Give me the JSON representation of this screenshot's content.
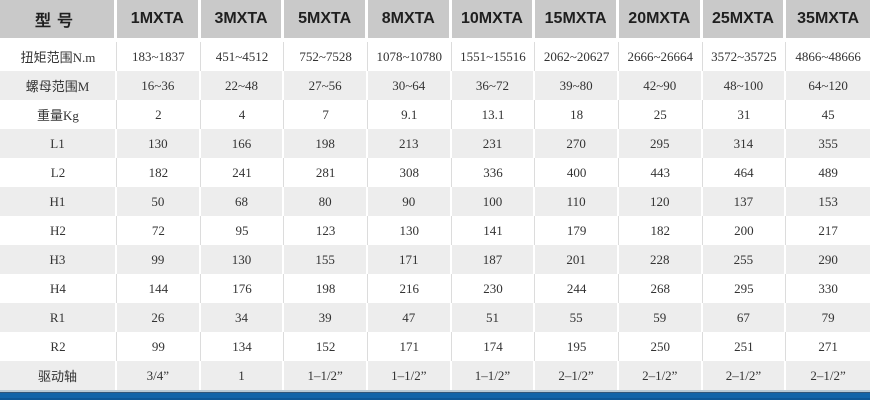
{
  "chart_data": {
    "type": "table",
    "title": "MXTA series specification table",
    "columns": [
      "型号",
      "1MXTA",
      "3MXTA",
      "5MXTA",
      "8MXTA",
      "10MXTA",
      "15MXTA",
      "20MXTA",
      "25MXTA",
      "35MXTA"
    ],
    "rows": [
      {
        "label": "扭矩范围N.m",
        "values": [
          "183~1837",
          "451~4512",
          "752~7528",
          "1078~10780",
          "1551~15516",
          "2062~20627",
          "2666~26664",
          "3572~35725",
          "4866~48666"
        ]
      },
      {
        "label": "螺母范围M",
        "values": [
          "16~36",
          "22~48",
          "27~56",
          "30~64",
          "36~72",
          "39~80",
          "42~90",
          "48~100",
          "64~120"
        ]
      },
      {
        "label": "重量Kg",
        "values": [
          "2",
          "4",
          "7",
          "9.1",
          "13.1",
          "18",
          "25",
          "31",
          "45"
        ]
      },
      {
        "label": "L1",
        "values": [
          "130",
          "166",
          "198",
          "213",
          "231",
          "270",
          "295",
          "314",
          "355"
        ]
      },
      {
        "label": "L2",
        "values": [
          "182",
          "241",
          "281",
          "308",
          "336",
          "400",
          "443",
          "464",
          "489"
        ]
      },
      {
        "label": "H1",
        "values": [
          "50",
          "68",
          "80",
          "90",
          "100",
          "110",
          "120",
          "137",
          "153"
        ]
      },
      {
        "label": "H2",
        "values": [
          "72",
          "95",
          "123",
          "130",
          "141",
          "179",
          "182",
          "200",
          "217"
        ]
      },
      {
        "label": "H3",
        "values": [
          "99",
          "130",
          "155",
          "171",
          "187",
          "201",
          "228",
          "255",
          "290"
        ]
      },
      {
        "label": "H4",
        "values": [
          "144",
          "176",
          "198",
          "216",
          "230",
          "244",
          "268",
          "295",
          "330"
        ]
      },
      {
        "label": "R1",
        "values": [
          "26",
          "34",
          "39",
          "47",
          "51",
          "55",
          "59",
          "67",
          "79"
        ]
      },
      {
        "label": "R2",
        "values": [
          "99",
          "134",
          "152",
          "171",
          "174",
          "195",
          "250",
          "251",
          "271"
        ]
      },
      {
        "label": "驱动轴",
        "values": [
          "3/4”",
          "1",
          "1–1/2”",
          "1–1/2”",
          "1–1/2”",
          "2–1/2”",
          "2–1/2”",
          "2–1/2”",
          "2–1/2”"
        ]
      }
    ],
    "layout": {
      "zebra_rows": true,
      "grid": "light vertical separators",
      "legend": "none"
    }
  },
  "colors": {
    "header_bg": "#c9c9c9",
    "row_alt_bg": "#ededed",
    "row_bg": "#ffffff",
    "body_text": "#333333",
    "accent_bar_blue": "#1164a8"
  }
}
